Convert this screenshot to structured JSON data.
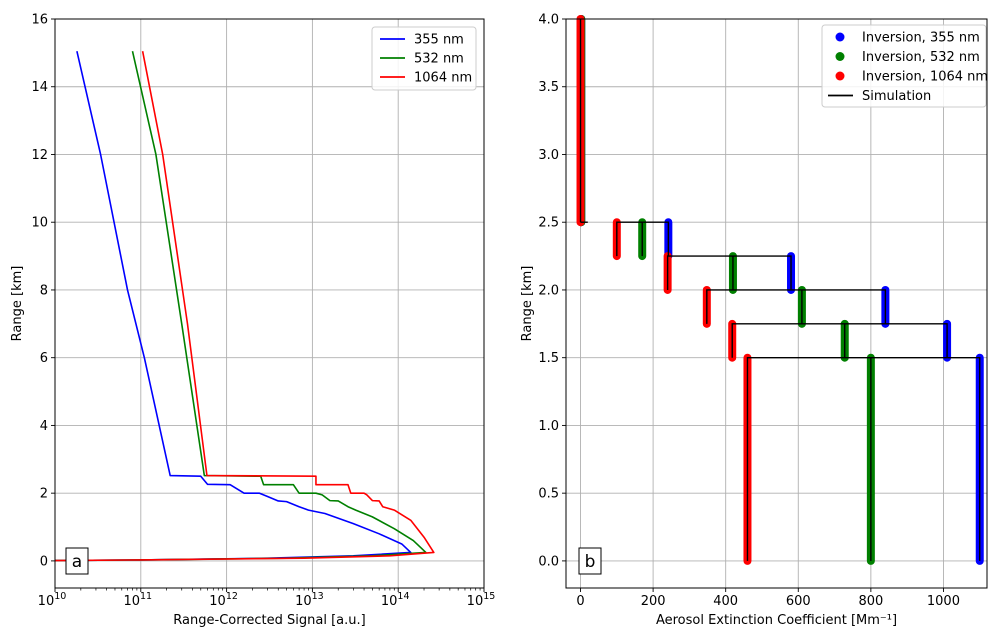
{
  "chart_data": [
    {
      "type": "line",
      "panel_label": "a",
      "xlabel": "Range-Corrected Signal [a.u.]",
      "ylabel": "Range [km]",
      "xscale": "log",
      "xlim": [
        10000000000.0,
        1000000000000000.0
      ],
      "ylim": [
        -0.8,
        16
      ],
      "xticks": [
        10000000000.0,
        100000000000.0,
        1000000000000.0,
        10000000000000.0,
        100000000000000.0,
        1000000000000000.0
      ],
      "xtick_labels": [
        {
          "base": "10",
          "exp": "10"
        },
        {
          "base": "10",
          "exp": "11"
        },
        {
          "base": "10",
          "exp": "12"
        },
        {
          "base": "10",
          "exp": "13"
        },
        {
          "base": "10",
          "exp": "14"
        },
        {
          "base": "10",
          "exp": "15"
        }
      ],
      "yticks": [
        0,
        2,
        4,
        6,
        8,
        10,
        12,
        14,
        16
      ],
      "ytick_labels": [
        "0",
        "2",
        "4",
        "6",
        "8",
        "10",
        "12",
        "14",
        "16"
      ],
      "grid": true,
      "legend": "top-right",
      "series": [
        {
          "name": "355 nm",
          "color": "#0000ff",
          "points": [
            [
              18000000000.0,
              15.05
            ],
            [
              34000000000.0,
              12
            ],
            [
              70000000000.0,
              8
            ],
            [
              110000000000.0,
              6
            ],
            [
              220000000000.0,
              2.52
            ],
            [
              500000000000.0,
              2.5
            ],
            [
              600000000000.0,
              2.26
            ],
            [
              1100000000000.0,
              2.25
            ],
            [
              1600000000000.0,
              2.0
            ],
            [
              2400000000000.0,
              2.0
            ],
            [
              3000000000000.0,
              1.9
            ],
            [
              4000000000000.0,
              1.77
            ],
            [
              5000000000000.0,
              1.75
            ],
            [
              7000000000000.0,
              1.6
            ],
            [
              9000000000000.0,
              1.5
            ],
            [
              14000000000000.0,
              1.4
            ],
            [
              30000000000000.0,
              1.1
            ],
            [
              60000000000000.0,
              0.8
            ],
            [
              110000000000000.0,
              0.5
            ],
            [
              140000000000000.0,
              0.25
            ],
            [
              30000000000000.0,
              0.15
            ],
            [
              3000000000000.0,
              0.08
            ],
            [
              100000000000.0,
              0.03
            ],
            [
              10000000000.0,
              0.01
            ]
          ]
        },
        {
          "name": "532 nm",
          "color": "#008000",
          "points": [
            [
              80000000000.0,
              15.05
            ],
            [
              150000000000.0,
              12
            ],
            [
              300000000000.0,
              7
            ],
            [
              550000000000.0,
              2.52
            ],
            [
              2500000000000.0,
              2.5
            ],
            [
              2700000000000.0,
              2.25
            ],
            [
              6000000000000.0,
              2.25
            ],
            [
              7000000000000.0,
              2.0
            ],
            [
              11000000000000.0,
              2.0
            ],
            [
              13000000000000.0,
              1.95
            ],
            [
              16000000000000.0,
              1.78
            ],
            [
              20000000000000.0,
              1.77
            ],
            [
              26000000000000.0,
              1.6
            ],
            [
              32000000000000.0,
              1.5
            ],
            [
              50000000000000.0,
              1.3
            ],
            [
              90000000000000.0,
              0.95
            ],
            [
              150000000000000.0,
              0.6
            ],
            [
              210000000000000.0,
              0.25
            ],
            [
              50000000000000.0,
              0.15
            ],
            [
              5000000000000.0,
              0.08
            ],
            [
              100000000000.0,
              0.03
            ],
            [
              10000000000.0,
              0.01
            ]
          ]
        },
        {
          "name": "1064 nm",
          "color": "#ff0000",
          "points": [
            [
              105000000000.0,
              15.05
            ],
            [
              180000000000.0,
              12
            ],
            [
              350000000000.0,
              7
            ],
            [
              590000000000.0,
              2.52
            ],
            [
              11000000000000.0,
              2.5
            ],
            [
              11000000000000.0,
              2.25
            ],
            [
              26000000000000.0,
              2.25
            ],
            [
              28000000000000.0,
              2.0
            ],
            [
              40000000000000.0,
              2.0
            ],
            [
              43000000000000.0,
              1.95
            ],
            [
              50000000000000.0,
              1.78
            ],
            [
              60000000000000.0,
              1.77
            ],
            [
              66000000000000.0,
              1.6
            ],
            [
              90000000000000.0,
              1.5
            ],
            [
              140000000000000.0,
              1.2
            ],
            [
              200000000000000.0,
              0.7
            ],
            [
              260000000000000.0,
              0.25
            ],
            [
              80000000000000.0,
              0.15
            ],
            [
              8000000000000.0,
              0.08
            ],
            [
              100000000000.0,
              0.03
            ],
            [
              10000000000.0,
              0.01
            ]
          ]
        }
      ]
    },
    {
      "type": "scatter",
      "panel_label": "b",
      "xlabel": "Aerosol Extinction Coefficient [Mm⁻¹]",
      "ylabel": "Range [km]",
      "xlim": [
        -40,
        1120
      ],
      "ylim": [
        -0.2,
        4.0
      ],
      "xticks": [
        0,
        200,
        400,
        600,
        800,
        1000
      ],
      "xtick_labels": [
        "0",
        "200",
        "400",
        "600",
        "800",
        "1000"
      ],
      "yticks": [
        0.0,
        0.5,
        1.0,
        1.5,
        2.0,
        2.5,
        3.0,
        3.5,
        4.0
      ],
      "ytick_labels": [
        "0.0",
        "0.5",
        "1.0",
        "1.5",
        "2.0",
        "2.5",
        "3.0",
        "3.5",
        "4.0"
      ],
      "grid": true,
      "legend": "top-right",
      "series": [
        {
          "name": "Inversion, 355 nm",
          "color": "#0000ff",
          "style": "markers",
          "segments": [
            {
              "x": 1100,
              "y": [
                0.0,
                1.5
              ]
            },
            {
              "x": 1010,
              "y": [
                1.5,
                1.75
              ]
            },
            {
              "x": 840,
              "y": [
                1.75,
                2.0
              ]
            },
            {
              "x": 580,
              "y": [
                2.0,
                2.25
              ]
            },
            {
              "x": 242,
              "y": [
                2.25,
                2.5
              ]
            },
            {
              "x": 2,
              "y": [
                2.5,
                4.0
              ]
            }
          ]
        },
        {
          "name": "Inversion, 532 nm",
          "color": "#008000",
          "style": "markers",
          "segments": [
            {
              "x": 800,
              "y": [
                0.0,
                1.5
              ]
            },
            {
              "x": 728,
              "y": [
                1.5,
                1.75
              ]
            },
            {
              "x": 610,
              "y": [
                1.75,
                2.0
              ]
            },
            {
              "x": 420,
              "y": [
                2.0,
                2.25
              ]
            },
            {
              "x": 170,
              "y": [
                2.25,
                2.5
              ]
            },
            {
              "x": 2,
              "y": [
                2.5,
                4.0
              ]
            }
          ]
        },
        {
          "name": "Inversion, 1064 nm",
          "color": "#ff0000",
          "style": "markers",
          "segments": [
            {
              "x": 460,
              "y": [
                0.0,
                1.5
              ]
            },
            {
              "x": 418,
              "y": [
                1.5,
                1.75
              ]
            },
            {
              "x": 348,
              "y": [
                1.75,
                2.0
              ]
            },
            {
              "x": 240,
              "y": [
                2.0,
                2.25
              ]
            },
            {
              "x": 100,
              "y": [
                2.25,
                2.5
              ]
            },
            {
              "x": 0,
              "y": [
                2.5,
                4.0
              ]
            }
          ]
        },
        {
          "name": "Simulation",
          "color": "#000000",
          "style": "line",
          "points_list": [
            [
              [
                460,
                0.0
              ],
              [
                460,
                1.5
              ],
              [
                1100,
                1.5
              ],
              [
                1100,
                0.0
              ]
            ],
            [
              [
                800,
                0.0
              ],
              [
                800,
                1.5
              ]
            ],
            [
              [
                418,
                1.5
              ],
              [
                418,
                1.75
              ],
              [
                1010,
                1.75
              ],
              [
                1010,
                1.5
              ]
            ],
            [
              [
                728,
                1.5
              ],
              [
                728,
                1.75
              ]
            ],
            [
              [
                348,
                1.75
              ],
              [
                348,
                2.0
              ],
              [
                840,
                2.0
              ],
              [
                840,
                1.75
              ]
            ],
            [
              [
                610,
                1.75
              ],
              [
                610,
                2.0
              ]
            ],
            [
              [
                240,
                2.0
              ],
              [
                240,
                2.25
              ],
              [
                580,
                2.25
              ],
              [
                580,
                2.0
              ]
            ],
            [
              [
                420,
                2.0
              ],
              [
                420,
                2.25
              ]
            ],
            [
              [
                100,
                2.25
              ],
              [
                100,
                2.5
              ],
              [
                242,
                2.5
              ],
              [
                242,
                2.25
              ]
            ],
            [
              [
                170,
                2.25
              ],
              [
                170,
                2.5
              ]
            ],
            [
              [
                0,
                2.5
              ],
              [
                0,
                4.0
              ]
            ],
            [
              [
                0,
                2.5
              ],
              [
                20,
                2.5
              ]
            ]
          ]
        }
      ]
    }
  ]
}
